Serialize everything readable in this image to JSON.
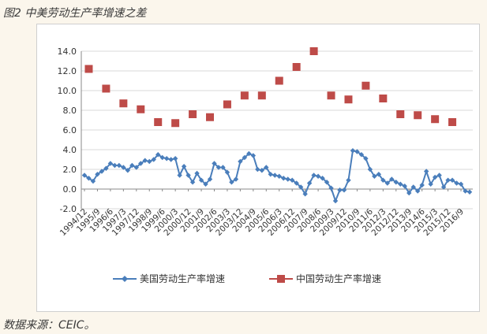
{
  "figure_title": "图2 中美劳动生产率增速之差",
  "source": "数据来源：CEIC。",
  "chart_data": {
    "type": "line",
    "title": "",
    "xlabel": "",
    "ylabel": "",
    "ylim": [
      -2.0,
      14.0
    ],
    "yticks": [
      "-2.0",
      "0.0",
      "2.0",
      "4.0",
      "6.0",
      "8.0",
      "10.0",
      "12.0",
      "14.0"
    ],
    "grid": "horizontal",
    "legend_position": "bottom",
    "x_tick_labels": [
      "1994/12",
      "1995/9",
      "1996/6",
      "1997/3",
      "1997/12",
      "1998/9",
      "1999/6",
      "2000/3",
      "2000/12",
      "2001/9",
      "2002/6",
      "2003/3",
      "2003/12",
      "2004/9",
      "2005/6",
      "2006/3",
      "2006/12",
      "2007/9",
      "2008/6",
      "2009/3",
      "2009/12",
      "2010/9",
      "2011/6",
      "2012/3",
      "2012/12",
      "2013/9",
      "2014/6",
      "2015/3",
      "2015/12",
      "2016/9"
    ],
    "series": [
      {
        "name": "美国劳动生产率增速",
        "color": "#4a7ebb",
        "marker": "diamond",
        "frequency": "quarterly",
        "x_start": "1994/12",
        "x_end": "2016/9",
        "values": [
          1.4,
          1.1,
          0.8,
          1.5,
          1.8,
          2.1,
          2.6,
          2.4,
          2.4,
          2.2,
          1.9,
          2.4,
          2.2,
          2.6,
          2.9,
          2.8,
          3.0,
          3.5,
          3.2,
          3.1,
          3.0,
          3.1,
          1.4,
          2.3,
          1.4,
          0.7,
          1.6,
          0.9,
          0.5,
          1.0,
          2.6,
          2.2,
          2.2,
          1.7,
          0.7,
          1.0,
          2.8,
          3.2,
          3.6,
          3.4,
          2.0,
          1.9,
          2.2,
          1.5,
          1.4,
          1.3,
          1.1,
          1.0,
          0.9,
          0.6,
          0.2,
          -0.5,
          0.6,
          1.4,
          1.3,
          1.1,
          0.7,
          0.1,
          -1.2,
          -0.1,
          -0.1,
          0.9,
          3.9,
          3.8,
          3.5,
          3.1,
          2.0,
          1.3,
          1.5,
          0.9,
          0.6,
          1.0,
          0.7,
          0.5,
          0.3,
          -0.4,
          0.2,
          -0.2,
          0.4,
          1.8,
          0.5,
          1.2,
          1.4,
          0.2,
          0.9,
          0.9,
          0.6,
          0.5,
          -0.2,
          -0.3
        ]
      },
      {
        "name": "中国劳动生产率增速",
        "color": "#be4b48",
        "marker": "square",
        "frequency": "annual",
        "x_start": "1994",
        "x_end": "2015",
        "values": [
          12.2,
          10.2,
          8.7,
          8.1,
          6.8,
          6.7,
          7.6,
          7.3,
          8.6,
          9.5,
          9.5,
          11.0,
          12.4,
          14.0,
          9.5,
          9.1,
          10.5,
          9.2,
          7.6,
          7.5,
          7.1,
          6.8
        ]
      }
    ]
  }
}
